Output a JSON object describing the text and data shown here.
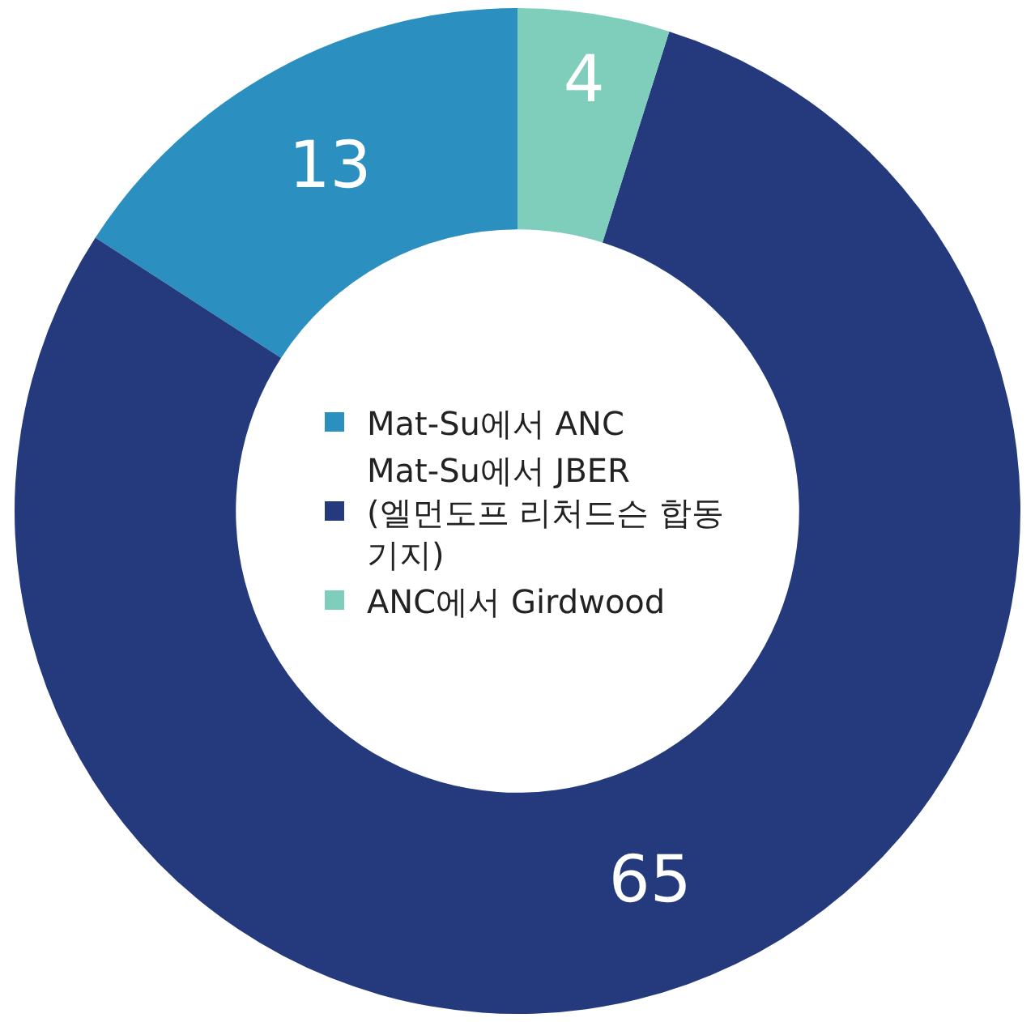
{
  "chart_data": {
    "type": "donut",
    "categories": [
      "Mat-Su에서 ANC",
      "Mat-Su에서 JBER (엘먼도프 리처드슨 합동 기지)",
      "ANC에서 Girdwood"
    ],
    "values": [
      13,
      65,
      4
    ],
    "colors": [
      "#2b8fc0",
      "#253a7c",
      "#7fcdbb"
    ],
    "data_labels": true,
    "legend": "center"
  }
}
